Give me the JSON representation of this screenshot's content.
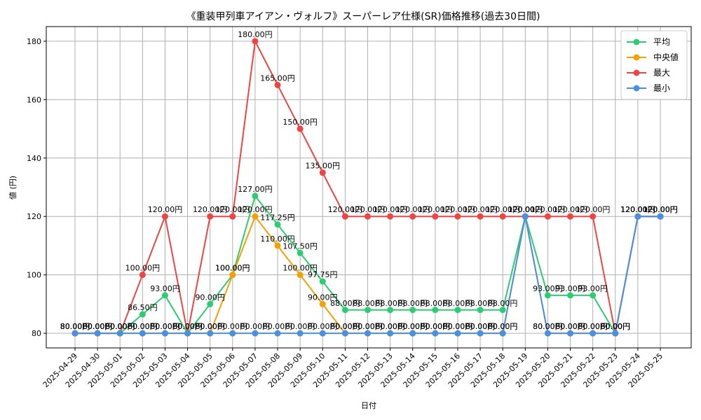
{
  "chart_data": {
    "type": "line",
    "title": "《重装甲列車アイアン・ヴォルフ》スーパーレア仕様(SR)価格推移(過去30日間)",
    "xlabel": "日付",
    "ylabel": "値 (円)",
    "ylim": [
      75,
      185
    ],
    "yticks": [
      80,
      100,
      120,
      140,
      160,
      180
    ],
    "grid": true,
    "legend_position": "top-right",
    "label_suffix": "円",
    "categories": [
      "2025-04-29",
      "2025-04-30",
      "2025-05-01",
      "2025-05-02",
      "2025-05-03",
      "2025-05-04",
      "2025-05-05",
      "2025-05-06",
      "2025-05-07",
      "2025-05-08",
      "2025-05-09",
      "2025-05-10",
      "2025-05-11",
      "2025-05-12",
      "2025-05-13",
      "2025-05-14",
      "2025-05-15",
      "2025-05-16",
      "2025-05-17",
      "2025-05-18",
      "2025-05-19",
      "2025-05-20",
      "2025-05-21",
      "2025-05-22",
      "2025-05-23",
      "2025-05-24",
      "2025-05-25"
    ],
    "series": [
      {
        "name": "平均",
        "color": "#2ecc71",
        "values": [
          80,
          80,
          80,
          86.5,
          93,
          80,
          90,
          100,
          127,
          117.25,
          107.5,
          97.75,
          88,
          88,
          88,
          88,
          88,
          88,
          88,
          88,
          120,
          93,
          93,
          93,
          80,
          120,
          120
        ]
      },
      {
        "name": "中央値",
        "color": "#f5a000",
        "values": [
          80,
          80,
          80,
          80,
          80,
          80,
          80,
          100,
          120,
          110,
          100,
          90,
          80,
          80,
          80,
          80,
          80,
          80,
          80,
          80,
          120,
          80,
          80,
          80,
          80,
          120,
          120
        ]
      },
      {
        "name": "最大",
        "color": "#ef4444",
        "values": [
          80,
          80,
          80,
          100,
          120,
          80,
          120,
          120,
          180,
          165,
          150,
          135,
          120,
          120,
          120,
          120,
          120,
          120,
          120,
          120,
          120,
          120,
          120,
          120,
          80,
          120,
          120
        ]
      },
      {
        "name": "最小",
        "color": "#4a90e2",
        "values": [
          80,
          80,
          80,
          80,
          80,
          80,
          80,
          80,
          80,
          80,
          80,
          80,
          80,
          80,
          80,
          80,
          80,
          80,
          80,
          80,
          120,
          80,
          80,
          80,
          80,
          120,
          120
        ]
      }
    ]
  }
}
